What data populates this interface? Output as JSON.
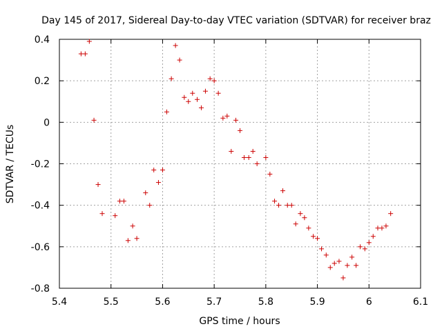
{
  "chart_data": {
    "type": "scatter",
    "title": "Day 145 of 2017, Sidereal Day-to-day VTEC variation (SDTVAR) for receiver braz",
    "xlabel": "GPS time / hours",
    "ylabel": "SDTVAR / TECUs",
    "xlim": [
      5.4,
      6.1
    ],
    "ylim": [
      -0.8,
      0.4
    ],
    "x_ticks": [
      "5.4",
      "5.5",
      "5.6",
      "5.7",
      "5.8",
      "5.9",
      "6",
      "6.1"
    ],
    "y_ticks": [
      "-0.8",
      "-0.6",
      "-0.4",
      "-0.2",
      "0",
      "0.2",
      "0.4"
    ],
    "grid": true,
    "marker": "+",
    "color": "#cc0000",
    "series": [
      {
        "name": "SDTVAR",
        "x": [
          5.442,
          5.45,
          5.458,
          5.467,
          5.475,
          5.483,
          5.508,
          5.517,
          5.525,
          5.533,
          5.542,
          5.55,
          5.567,
          5.575,
          5.583,
          5.592,
          5.6,
          5.608,
          5.617,
          5.625,
          5.633,
          5.642,
          5.65,
          5.658,
          5.667,
          5.675,
          5.683,
          5.692,
          5.7,
          5.708,
          5.717,
          5.725,
          5.733,
          5.742,
          5.75,
          5.758,
          5.767,
          5.775,
          5.783,
          5.8,
          5.808,
          5.817,
          5.825,
          5.833,
          5.842,
          5.85,
          5.858,
          5.867,
          5.875,
          5.883,
          5.892,
          5.9,
          5.908,
          5.917,
          5.925,
          5.933,
          5.942,
          5.95,
          5.958,
          5.967,
          5.975,
          5.983,
          5.992,
          6.0,
          6.008,
          6.017,
          6.025,
          6.033,
          6.042
        ],
        "y": [
          0.33,
          0.33,
          0.39,
          0.01,
          -0.3,
          -0.44,
          -0.45,
          -0.38,
          -0.38,
          -0.57,
          -0.5,
          -0.56,
          -0.34,
          -0.4,
          -0.23,
          -0.29,
          -0.23,
          0.05,
          0.21,
          0.37,
          0.3,
          0.12,
          0.1,
          0.14,
          0.11,
          0.07,
          0.15,
          0.21,
          0.2,
          0.14,
          0.02,
          0.03,
          -0.14,
          0.01,
          -0.04,
          -0.17,
          -0.17,
          -0.14,
          -0.2,
          -0.17,
          -0.25,
          -0.38,
          -0.4,
          -0.33,
          -0.4,
          -0.4,
          -0.49,
          -0.44,
          -0.46,
          -0.51,
          -0.55,
          -0.56,
          -0.61,
          -0.64,
          -0.7,
          -0.68,
          -0.67,
          -0.75,
          -0.69,
          -0.65,
          -0.69,
          -0.6,
          -0.61,
          -0.58,
          -0.55,
          -0.51,
          -0.51,
          -0.5,
          -0.44
        ]
      }
    ]
  }
}
